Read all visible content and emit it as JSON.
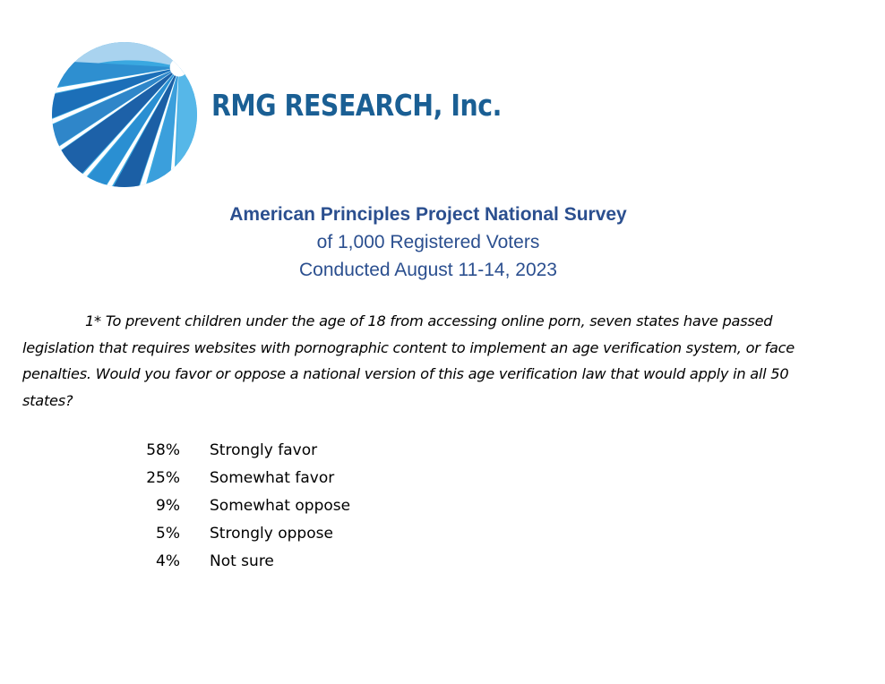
{
  "brand": {
    "logo_icon": "rmg-sunburst-logo",
    "name": "RMG RESEARCH, Inc.",
    "color": "#1a5f94"
  },
  "survey": {
    "title": "American Principles Project National Survey",
    "sample": "of 1,000 Registered Voters",
    "dates": "Conducted August 11-14, 2023",
    "header_color": "#2b4f8f"
  },
  "question": {
    "number": "1*",
    "text": "To prevent children under the age of 18 from accessing online porn, seven states have passed legislation that requires websites with pornographic content to implement an age verification system, or face penalties. Would you favor or oppose a national version of this age verification law that would apply in all 50 states?"
  },
  "results": [
    {
      "percent": "58%",
      "label": "Strongly favor"
    },
    {
      "percent": "25%",
      "label": "Somewhat favor"
    },
    {
      "percent": "9%",
      "label": "Somewhat oppose"
    },
    {
      "percent": "5%",
      "label": "Strongly oppose"
    },
    {
      "percent": "4%",
      "label": "Not sure"
    }
  ]
}
